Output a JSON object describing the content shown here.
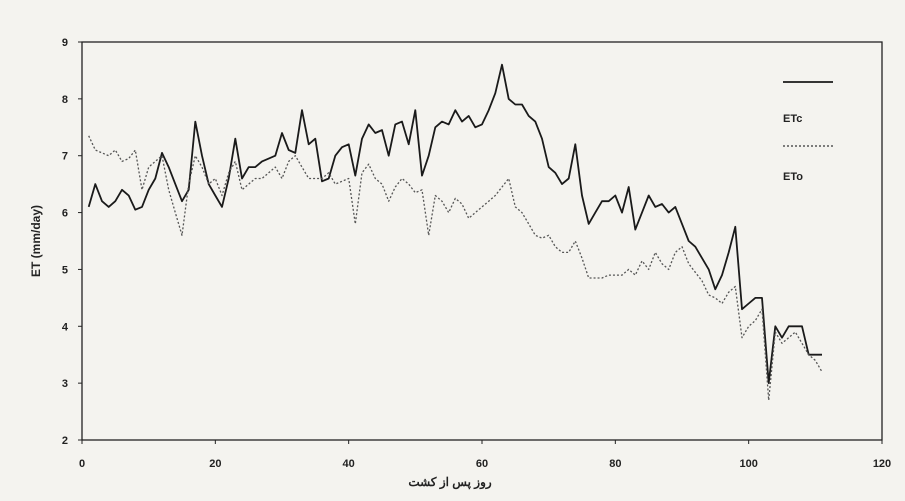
{
  "chart_data": {
    "type": "line",
    "title": "",
    "xlabel": "روز پس از کشت",
    "ylabel": "ET (mm/day)",
    "xlim": [
      0,
      120
    ],
    "ylim": [
      2,
      9
    ],
    "xticks": [
      "0",
      "20",
      "40",
      "60",
      "80",
      "100",
      "120"
    ],
    "yticks": [
      "2",
      "3",
      "4",
      "5",
      "6",
      "7",
      "8",
      "9"
    ],
    "grid": false,
    "legend_position": "top-right",
    "series": [
      {
        "name": "ETc",
        "style": "solid",
        "color": "#1a1a1a",
        "x": [
          1,
          2,
          3,
          4,
          5,
          6,
          7,
          8,
          9,
          10,
          11,
          12,
          13,
          14,
          15,
          16,
          17,
          18,
          19,
          20,
          21,
          22,
          23,
          24,
          25,
          26,
          27,
          28,
          29,
          30,
          31,
          32,
          33,
          34,
          35,
          36,
          37,
          38,
          39,
          40,
          41,
          42,
          43,
          44,
          45,
          46,
          47,
          48,
          49,
          50,
          51,
          52,
          53,
          54,
          55,
          56,
          57,
          58,
          59,
          60,
          61,
          62,
          63,
          64,
          65,
          66,
          67,
          68,
          69,
          70,
          71,
          72,
          73,
          74,
          75,
          76,
          77,
          78,
          79,
          80,
          81,
          82,
          83,
          84,
          85,
          86,
          87,
          88,
          89,
          90,
          91,
          92,
          93,
          94,
          95,
          96,
          97,
          98,
          99,
          100,
          101,
          102,
          103,
          104,
          105,
          106,
          107,
          108,
          109,
          110,
          111
        ],
        "y": [
          6.1,
          6.5,
          6.2,
          6.1,
          6.2,
          6.4,
          6.3,
          6.05,
          6.1,
          6.4,
          6.6,
          7.05,
          6.8,
          6.5,
          6.2,
          6.4,
          7.6,
          7.0,
          6.5,
          6.3,
          6.1,
          6.6,
          7.3,
          6.6,
          6.8,
          6.8,
          6.9,
          6.95,
          7.0,
          7.4,
          7.1,
          7.05,
          7.8,
          7.2,
          7.3,
          6.55,
          6.6,
          7.0,
          7.15,
          7.2,
          6.65,
          7.3,
          7.55,
          7.4,
          7.45,
          7.0,
          7.55,
          7.6,
          7.2,
          7.8,
          6.65,
          7.0,
          7.5,
          7.6,
          7.55,
          7.8,
          7.6,
          7.7,
          7.5,
          7.55,
          7.8,
          8.1,
          8.6,
          8.0,
          7.9,
          7.9,
          7.7,
          7.6,
          7.3,
          6.8,
          6.7,
          6.5,
          6.6,
          7.2,
          6.3,
          5.8,
          6.0,
          6.2,
          6.2,
          6.3,
          6.0,
          6.45,
          5.7,
          6.0,
          6.3,
          6.1,
          6.15,
          6.0,
          6.1,
          5.8,
          5.5,
          5.4,
          5.2,
          5.0,
          4.65,
          4.9,
          5.3,
          5.75,
          4.3,
          4.4,
          4.5,
          4.5,
          3.0,
          4.0,
          3.8,
          4.0,
          4.0,
          4.0,
          3.5,
          3.5,
          3.5
        ]
      },
      {
        "name": "ETo",
        "style": "dotted",
        "color": "#555555",
        "x": [
          1,
          2,
          3,
          4,
          5,
          6,
          7,
          8,
          9,
          10,
          11,
          12,
          13,
          14,
          15,
          16,
          17,
          18,
          19,
          20,
          21,
          22,
          23,
          24,
          25,
          26,
          27,
          28,
          29,
          30,
          31,
          32,
          33,
          34,
          35,
          36,
          37,
          38,
          39,
          40,
          41,
          42,
          43,
          44,
          45,
          46,
          47,
          48,
          49,
          50,
          51,
          52,
          53,
          54,
          55,
          56,
          57,
          58,
          59,
          60,
          61,
          62,
          63,
          64,
          65,
          66,
          67,
          68,
          69,
          70,
          71,
          72,
          73,
          74,
          75,
          76,
          77,
          78,
          79,
          80,
          81,
          82,
          83,
          84,
          85,
          86,
          87,
          88,
          89,
          90,
          91,
          92,
          93,
          94,
          95,
          96,
          97,
          98,
          99,
          100,
          101,
          102,
          103,
          104,
          105,
          106,
          107,
          108,
          109,
          110,
          111
        ],
        "y": [
          7.35,
          7.1,
          7.05,
          7.0,
          7.1,
          6.9,
          6.95,
          7.1,
          6.4,
          6.8,
          6.9,
          7.0,
          6.4,
          6.0,
          5.6,
          6.5,
          7.0,
          6.8,
          6.5,
          6.6,
          6.3,
          6.7,
          6.9,
          6.4,
          6.5,
          6.6,
          6.6,
          6.7,
          6.8,
          6.6,
          6.9,
          7.0,
          6.8,
          6.6,
          6.6,
          6.6,
          6.7,
          6.5,
          6.55,
          6.6,
          5.8,
          6.7,
          6.85,
          6.6,
          6.5,
          6.2,
          6.45,
          6.6,
          6.5,
          6.35,
          6.4,
          5.6,
          6.3,
          6.2,
          6.0,
          6.25,
          6.15,
          5.9,
          6.0,
          6.1,
          6.2,
          6.3,
          6.45,
          6.6,
          6.1,
          6.0,
          5.8,
          5.6,
          5.55,
          5.6,
          5.4,
          5.3,
          5.3,
          5.5,
          5.2,
          4.85,
          4.85,
          4.85,
          4.9,
          4.9,
          4.9,
          5.0,
          4.9,
          5.15,
          5.0,
          5.3,
          5.1,
          5.0,
          5.3,
          5.4,
          5.1,
          4.95,
          4.8,
          4.55,
          4.5,
          4.4,
          4.6,
          4.7,
          3.8,
          4.0,
          4.1,
          4.3,
          2.7,
          3.9,
          3.7,
          3.8,
          3.9,
          3.7,
          3.5,
          3.4,
          3.2
        ]
      }
    ]
  }
}
